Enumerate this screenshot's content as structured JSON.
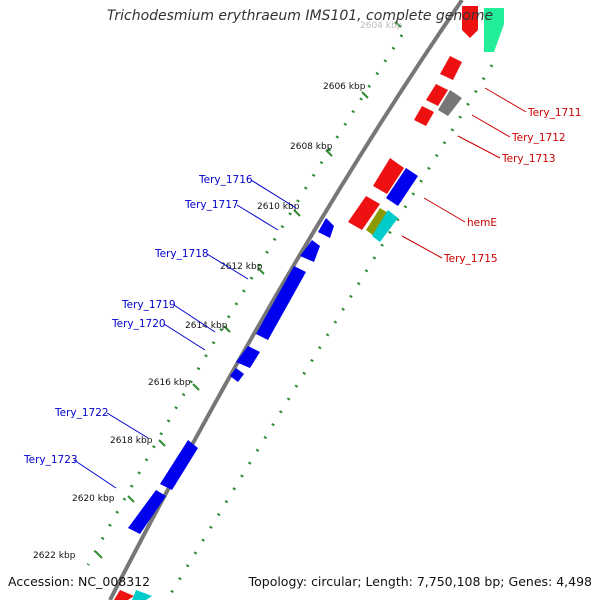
{
  "title": "Trichodesmium erythraeum IMS101, complete genome",
  "accession_label": "Accession:",
  "accession": "NC_008312",
  "topology_text": "Topology: circular;",
  "length_text": "Length: 7,750,108 bp;",
  "genes_text": "Genes: 4,498",
  "colors": {
    "backbone": "#7a7a7a",
    "gc_ticks": "#2e8b2e",
    "forward_label": "#cc0000",
    "reverse_label": "#0000cc"
  },
  "scale_labels": [
    "2604 kbp",
    "2606 kbp",
    "2608 kbp",
    "2610 kbp",
    "2612 kbp",
    "2614 kbp",
    "2616 kbp",
    "2618 kbp",
    "2620 kbp",
    "2622 kbp"
  ],
  "forward_gene_labels": [
    "Tery_1711",
    "Tery_1712",
    "Tery_1713",
    "hemE",
    "Tery_1715"
  ],
  "reverse_gene_labels": [
    "Tery_1716",
    "Tery_1717",
    "Tery_1718",
    "Tery_1719",
    "Tery_1720",
    "Tery_1722",
    "Tery_1723"
  ]
}
